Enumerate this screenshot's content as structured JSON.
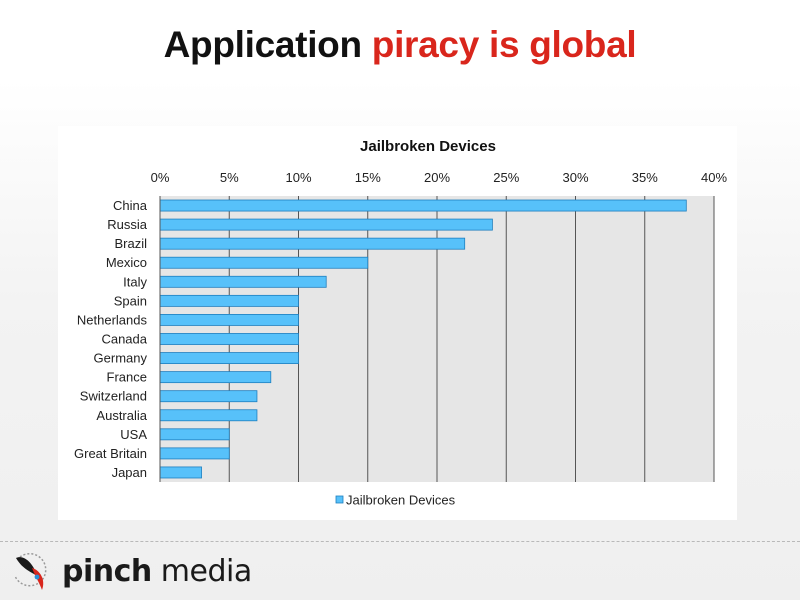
{
  "slide": {
    "title_part1": "Application ",
    "title_part2": "piracy is global",
    "title_colors": {
      "dark": "#111111",
      "accent": "#d9261c"
    }
  },
  "brand": {
    "name_bold": "pinch",
    "name_regular": " media",
    "logo_icon": "pinch-media-logo-icon"
  },
  "chart_data": {
    "type": "bar",
    "orientation": "horizontal",
    "title": "Jailbroken Devices",
    "categories": [
      "China",
      "Russia",
      "Brazil",
      "Mexico",
      "Italy",
      "Spain",
      "Netherlands",
      "Canada",
      "Germany",
      "France",
      "Switzerland",
      "Australia",
      "USA",
      "Great Britain",
      "Japan"
    ],
    "series": [
      {
        "name": "Jailbroken Devices",
        "values": [
          38,
          24,
          22,
          15,
          12,
          10,
          10,
          10,
          10,
          8,
          7,
          7,
          5,
          5,
          3
        ]
      }
    ],
    "xlim": [
      0,
      40
    ],
    "xticks": [
      0,
      5,
      10,
      15,
      20,
      25,
      30,
      35,
      40
    ],
    "xtick_labels": [
      "0%",
      "5%",
      "10%",
      "15%",
      "20%",
      "25%",
      "30%",
      "35%",
      "40%"
    ],
    "x_axis_position": "top",
    "grid": true,
    "legend": "bottom",
    "colors": {
      "bar": "#57c1fa",
      "bar_stroke": "#1f7fbf",
      "plot_bg": "#e6e6e6",
      "grid": "#555555"
    }
  }
}
